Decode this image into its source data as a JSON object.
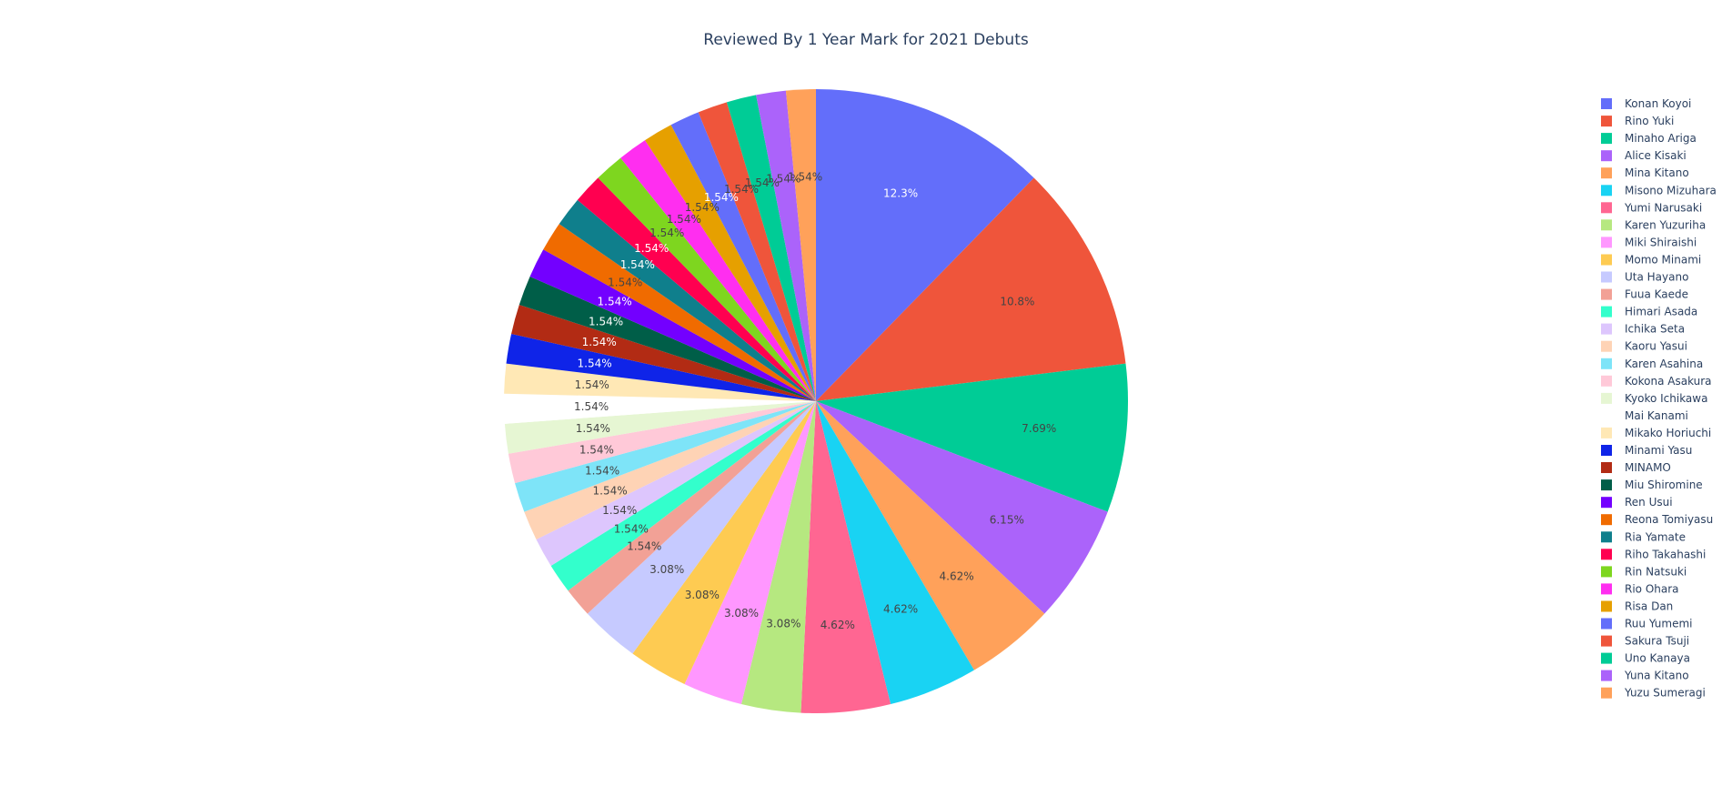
{
  "chart_data": {
    "type": "pie",
    "title": "Reviewed By 1 Year Mark for 2021 Debuts",
    "legend_position": "right",
    "slices": [
      {
        "label": "Konan Koyoi",
        "value": 8,
        "percent_label": "12.3%",
        "color": "#636efa",
        "text_color": "#ffffff"
      },
      {
        "label": "Rino Yuki",
        "value": 7,
        "percent_label": "10.8%",
        "color": "#EF553B",
        "text_color": "#444444"
      },
      {
        "label": "Minaho Ariga",
        "value": 5,
        "percent_label": "7.69%",
        "color": "#00cc96",
        "text_color": "#444444"
      },
      {
        "label": "Alice Kisaki",
        "value": 4,
        "percent_label": "6.15%",
        "color": "#ab63fa",
        "text_color": "#444444"
      },
      {
        "label": "Mina Kitano",
        "value": 3,
        "percent_label": "4.62%",
        "color": "#FFA15A",
        "text_color": "#444444"
      },
      {
        "label": "Misono Mizuhara",
        "value": 3,
        "percent_label": "4.62%",
        "color": "#19d3f3",
        "text_color": "#444444"
      },
      {
        "label": "Yumi Narusaki",
        "value": 3,
        "percent_label": "4.62%",
        "color": "#FF6692",
        "text_color": "#444444"
      },
      {
        "label": "Karen Yuzuriha",
        "value": 2,
        "percent_label": "3.08%",
        "color": "#B6E880",
        "text_color": "#444444"
      },
      {
        "label": "Miki Shiraishi",
        "value": 2,
        "percent_label": "3.08%",
        "color": "#FF97FF",
        "text_color": "#444444"
      },
      {
        "label": "Momo Minami",
        "value": 2,
        "percent_label": "3.08%",
        "color": "#FECB52",
        "text_color": "#444444"
      },
      {
        "label": "Uta Hayano",
        "value": 2,
        "percent_label": "3.08%",
        "color": "#c6caff",
        "text_color": "#444444"
      },
      {
        "label": "Fuua Kaede",
        "value": 1,
        "percent_label": "1.54%",
        "color": "#f2a196",
        "text_color": "#444444"
      },
      {
        "label": "Himari Asada",
        "value": 1,
        "percent_label": "1.54%",
        "color": "#33ffcc",
        "text_color": "#444444"
      },
      {
        "label": "Ichika Seta",
        "value": 1,
        "percent_label": "1.54%",
        "color": "#ddc6fd",
        "text_color": "#444444"
      },
      {
        "label": "Kaoru Yasui",
        "value": 1,
        "percent_label": "1.54%",
        "color": "#fed3b5",
        "text_color": "#444444"
      },
      {
        "label": "Karen Asahina",
        "value": 1,
        "percent_label": "1.54%",
        "color": "#7ee4f8",
        "text_color": "#444444"
      },
      {
        "label": "Kokona Asakura",
        "value": 1,
        "percent_label": "1.54%",
        "color": "#ffc9d8",
        "text_color": "#444444"
      },
      {
        "label": "Kyoko Ichikawa",
        "value": 1,
        "percent_label": "1.54%",
        "color": "#e6f6d3",
        "text_color": "#444444"
      },
      {
        "label": "Mai Kanami",
        "value": 1,
        "percent_label": "1.54%",
        "color": "#ffffff",
        "text_color": "#444444"
      },
      {
        "label": "Mikako Horiuchi",
        "value": 1,
        "percent_label": "1.54%",
        "color": "#ffe8b5",
        "text_color": "#444444"
      },
      {
        "label": "Minami Yasu",
        "value": 1,
        "percent_label": "1.54%",
        "color": "#0f24e8",
        "text_color": "#ffffff"
      },
      {
        "label": "MINAMO",
        "value": 1,
        "percent_label": "1.54%",
        "color": "#b22b14",
        "text_color": "#ffffff"
      },
      {
        "label": "Miu Shiromine",
        "value": 1,
        "percent_label": "1.54%",
        "color": "#005e48",
        "text_color": "#ffffff"
      },
      {
        "label": "Ren Usui",
        "value": 1,
        "percent_label": "1.54%",
        "color": "#7300ff",
        "text_color": "#ffffff"
      },
      {
        "label": "Reona Tomiyasu",
        "value": 1,
        "percent_label": "1.54%",
        "color": "#f06b00",
        "text_color": "#444444"
      },
      {
        "label": "Ria Yamate",
        "value": 1,
        "percent_label": "1.54%",
        "color": "#0f7f8c",
        "text_color": "#ffffff"
      },
      {
        "label": "Riho Takahashi",
        "value": 1,
        "percent_label": "1.54%",
        "color": "#ff0050",
        "text_color": "#ffffff"
      },
      {
        "label": "Rin Natsuki",
        "value": 1,
        "percent_label": "1.54%",
        "color": "#7ed61f",
        "text_color": "#444444"
      },
      {
        "label": "Rio Ohara",
        "value": 1,
        "percent_label": "1.54%",
        "color": "#ff2ef0",
        "text_color": "#444444"
      },
      {
        "label": "Risa Dan",
        "value": 1,
        "percent_label": "1.54%",
        "color": "#e6a000",
        "text_color": "#444444"
      },
      {
        "label": "Ruu Yumemi",
        "value": 1,
        "percent_label": "1.54%",
        "color": "#636efa",
        "text_color": "#ffffff"
      },
      {
        "label": "Sakura Tsuji",
        "value": 1,
        "percent_label": "1.54%",
        "color": "#EF553B",
        "text_color": "#444444"
      },
      {
        "label": "Uno Kanaya",
        "value": 1,
        "percent_label": "1.54%",
        "color": "#00cc96",
        "text_color": "#444444"
      },
      {
        "label": "Yuna Kitano",
        "value": 1,
        "percent_label": "1.54%",
        "color": "#ab63fa",
        "text_color": "#444444"
      },
      {
        "label": "Yuzu Sumeragi",
        "value": 1,
        "percent_label": "1.54%",
        "color": "#FFA15A",
        "text_color": "#444444"
      }
    ]
  }
}
